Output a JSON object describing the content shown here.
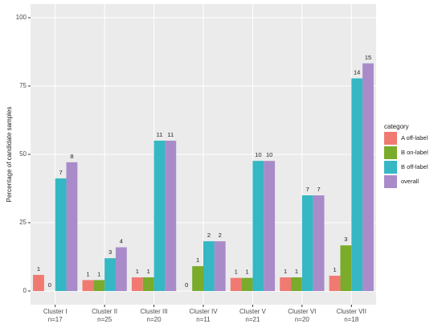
{
  "chart_data": {
    "type": "bar",
    "y_label": "Percentage of candidate samples",
    "legend_title": "category",
    "categories": [
      "Cluster  I",
      "Cluster  II",
      "Cluster  III",
      "Cluster  IV",
      "Cluster  V",
      "Cluster  VI",
      "Cluster  VII"
    ],
    "sample_sizes": [
      "n=17",
      "n=25",
      "n=20",
      "n=11",
      "n=21",
      "n=20",
      "n=18"
    ],
    "series": [
      {
        "name": "A off-label",
        "color": "#f07a72",
        "values": [
          5.9,
          4,
          5,
          0,
          4.8,
          5,
          5.6
        ],
        "counts": [
          1,
          1,
          1,
          0,
          1,
          1,
          1
        ]
      },
      {
        "name": "B on-label",
        "color": "#7aab2b",
        "values": [
          0,
          4,
          5,
          9.1,
          4.8,
          5,
          16.7
        ],
        "counts": [
          0,
          1,
          1,
          1,
          1,
          1,
          3
        ]
      },
      {
        "name": "B off-label",
        "color": "#35b7c4",
        "values": [
          41.2,
          12,
          55,
          18.2,
          47.6,
          35,
          77.8
        ],
        "counts": [
          7,
          3,
          11,
          2,
          10,
          7,
          14
        ]
      },
      {
        "name": "overall",
        "color": "#a98bc9",
        "values": [
          47.1,
          16,
          55,
          18.2,
          47.6,
          35,
          83.3
        ],
        "counts": [
          8,
          4,
          11,
          2,
          10,
          7,
          15
        ]
      }
    ],
    "ylim": [
      -5,
      105
    ],
    "yticks": [
      0,
      25,
      50,
      75,
      100
    ],
    "grid": true,
    "legend_position": "right"
  }
}
